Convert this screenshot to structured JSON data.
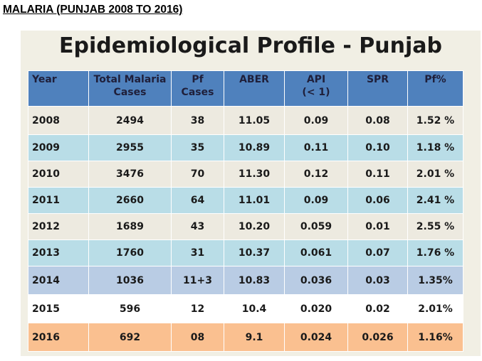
{
  "heading": "MALARIA (PUNJAB 2008 TO 2016)",
  "slide": {
    "title": "Epidemiological Profile - Punjab"
  },
  "table": {
    "headers": [
      [
        "Year"
      ],
      [
        "Total Malaria",
        "Cases"
      ],
      [
        "Pf",
        "Cases"
      ],
      [
        "ABER"
      ],
      [
        "API",
        "(< 1)"
      ],
      [
        "SPR"
      ],
      [
        "Pf%"
      ]
    ],
    "rows": [
      [
        "2008",
        "2494",
        "38",
        "11.05",
        "0.09",
        "0.08",
        "1.52 %"
      ],
      [
        "2009",
        "2955",
        "35",
        "10.89",
        "0.11",
        "0.10",
        "1.18 %"
      ],
      [
        "2010",
        "3476",
        "70",
        "11.30",
        "0.12",
        "0.11",
        "2.01 %"
      ],
      [
        "2011",
        "2660",
        "64",
        "11.01",
        "0.09",
        "0.06",
        "2.41 %"
      ],
      [
        "2012",
        "1689",
        "43",
        "10.20",
        "0.059",
        "0.01",
        "2.55 %"
      ],
      [
        "2013",
        "1760",
        "31",
        "10.37",
        "0.061",
        "0.07",
        "1.76 %"
      ],
      [
        "2014",
        "1036",
        "11+3",
        "10.83",
        "0.036",
        "0.03",
        "1.35%"
      ],
      [
        "2015",
        "596",
        "12",
        "10.4",
        "0.020",
        "0.02",
        "2.01%"
      ],
      [
        "2016",
        "692",
        "08",
        "9.1",
        "0.024",
        "0.026",
        "1.16%"
      ]
    ]
  },
  "colors": {
    "header": "#4f81bd",
    "row_beige": "#edeae0",
    "row_light_blue": "#b9dde7",
    "row_steel_blue": "#b9cce4",
    "row_white": "#ffffff",
    "row_highlight": "#fac090",
    "panel_background": "#f1efe4"
  }
}
